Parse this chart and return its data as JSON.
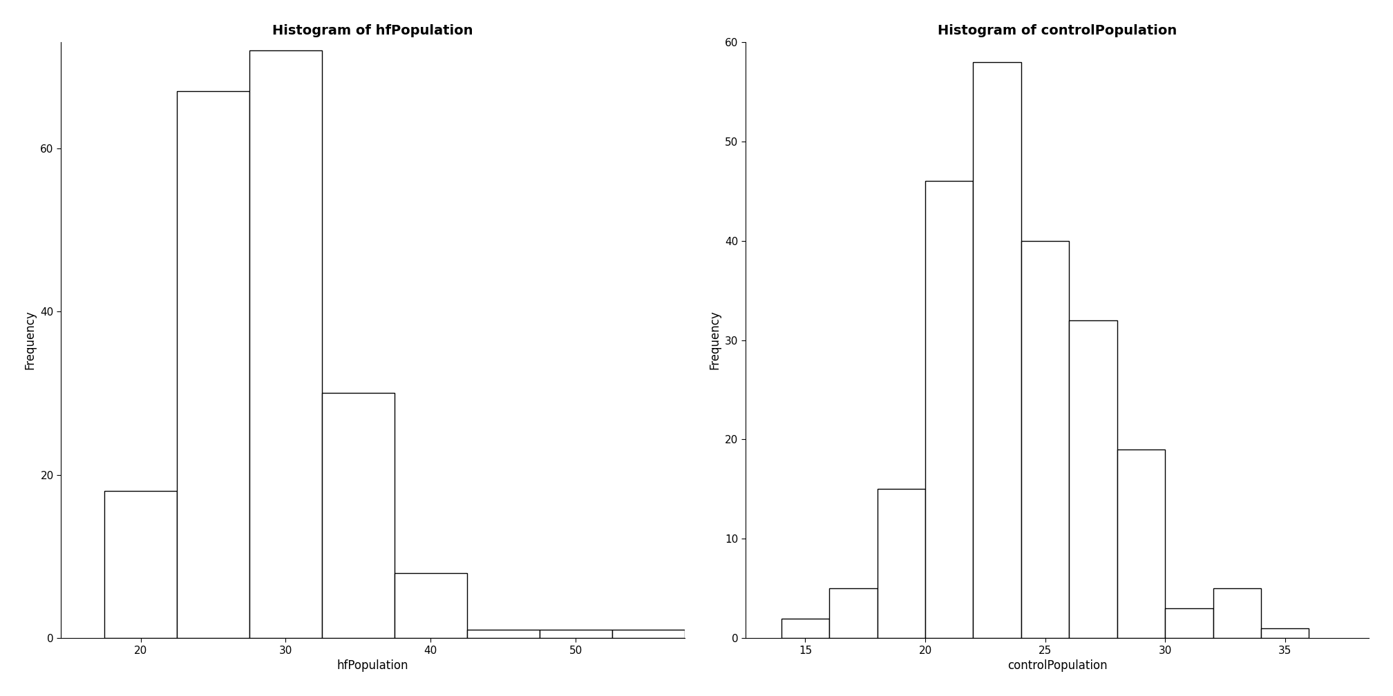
{
  "hf": {
    "title": "Histogram of hfPopulation",
    "xlabel": "hfPopulation",
    "ylabel": "Frequency",
    "bin_edges": [
      17.5,
      22.5,
      27.5,
      32.5,
      37.5,
      42.5,
      47.5,
      52.5,
      57.5
    ],
    "counts": [
      18,
      67,
      72,
      30,
      8,
      1,
      1,
      1
    ],
    "xlim": [
      14.5,
      57.5
    ],
    "ylim": [
      0,
      73
    ],
    "xticks": [
      20,
      30,
      40,
      50
    ],
    "yticks": [
      0,
      20,
      40,
      60
    ]
  },
  "ctrl": {
    "title": "Histogram of controlPopulation",
    "xlabel": "controlPopulation",
    "ylabel": "Frequency",
    "bin_edges": [
      14,
      16,
      18,
      20,
      22,
      24,
      26,
      28,
      30,
      32,
      34,
      36,
      38
    ],
    "counts": [
      2,
      5,
      15,
      46,
      58,
      40,
      32,
      19,
      3,
      5,
      1,
      0
    ],
    "xlim": [
      12.5,
      38.5
    ],
    "ylim": [
      0,
      60
    ],
    "xticks": [
      15,
      20,
      25,
      30,
      35
    ],
    "yticks": [
      0,
      10,
      20,
      30,
      40,
      50,
      60
    ]
  },
  "bar_facecolor": "#ffffff",
  "bar_edgecolor": "#000000",
  "background_color": "#ffffff",
  "title_fontsize": 14,
  "label_fontsize": 12,
  "tick_fontsize": 11,
  "linewidth": 1.0
}
